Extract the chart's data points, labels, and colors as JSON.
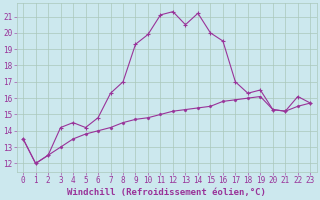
{
  "xlabel": "Windchill (Refroidissement éolien,°C)",
  "bg_color": "#cce8ee",
  "grid_color": "#aac8bb",
  "line_color": "#993399",
  "x": [
    0,
    1,
    2,
    3,
    4,
    5,
    6,
    7,
    8,
    9,
    10,
    11,
    12,
    13,
    14,
    15,
    16,
    17,
    18,
    19,
    20,
    21,
    22,
    23
  ],
  "curve1": [
    13.5,
    12.0,
    12.5,
    14.2,
    14.5,
    14.2,
    14.8,
    16.3,
    17.0,
    19.3,
    19.9,
    21.1,
    21.3,
    20.5,
    21.2,
    20.0,
    19.5,
    17.0,
    16.3,
    16.5,
    15.3,
    15.2,
    16.1,
    15.7
  ],
  "curve2": [
    13.5,
    12.0,
    12.5,
    13.0,
    13.5,
    13.8,
    14.0,
    14.2,
    14.5,
    14.7,
    14.8,
    15.0,
    15.2,
    15.3,
    15.4,
    15.5,
    15.8,
    15.9,
    16.0,
    16.1,
    15.3,
    15.2,
    15.5,
    15.7
  ],
  "ylim": [
    11.5,
    21.8
  ],
  "xlim": [
    -0.5,
    23.5
  ],
  "yticks": [
    12,
    13,
    14,
    15,
    16,
    17,
    18,
    19,
    20,
    21
  ],
  "xticks": [
    0,
    1,
    2,
    3,
    4,
    5,
    6,
    7,
    8,
    9,
    10,
    11,
    12,
    13,
    14,
    15,
    16,
    17,
    18,
    19,
    20,
    21,
    22,
    23
  ],
  "tick_fontsize": 5.5,
  "xlabel_fontsize": 6.5
}
